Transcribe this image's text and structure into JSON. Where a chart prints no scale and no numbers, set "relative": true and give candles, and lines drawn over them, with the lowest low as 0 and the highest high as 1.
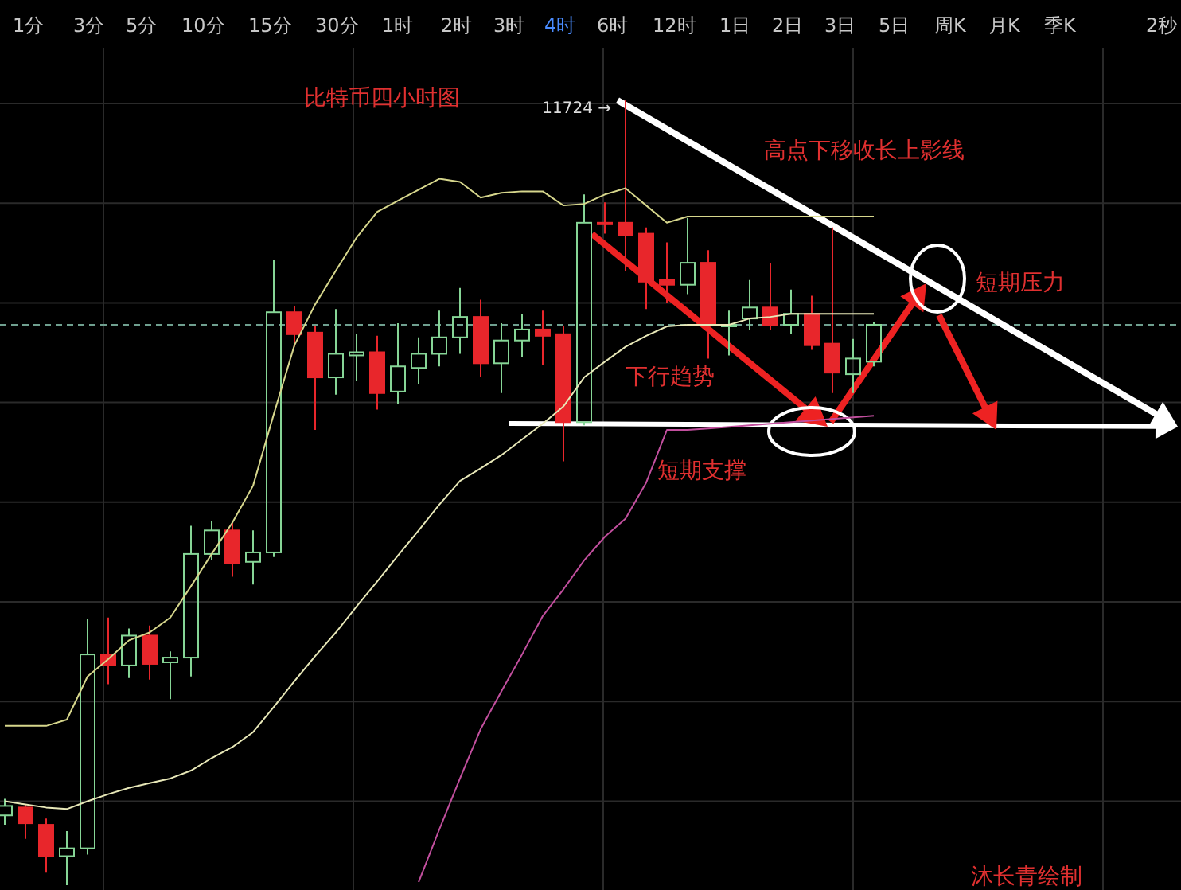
{
  "chart_data": {
    "type": "candlestick",
    "title": "比特币四小时图",
    "relative": true,
    "grid": true,
    "categories": [
      null,
      null,
      null,
      null,
      null,
      null,
      null,
      null,
      null,
      null,
      null,
      null,
      null,
      null,
      null,
      null,
      null,
      null,
      null,
      null,
      null,
      null,
      null,
      null,
      null,
      null,
      null,
      null,
      null,
      null,
      null,
      null,
      null,
      null,
      null,
      null,
      null,
      null,
      null,
      null,
      null,
      null,
      null
    ],
    "ohlc": [
      [
        0.089,
        0.11,
        0.077,
        0.101
      ],
      [
        0.099,
        0.103,
        0.059,
        0.079
      ],
      [
        0.077,
        0.085,
        0.016,
        0.037
      ],
      [
        0.037,
        0.069,
        0,
        0.047
      ],
      [
        0.047,
        0.339,
        0.039,
        0.294
      ],
      [
        0.294,
        0.341,
        0.256,
        0.28
      ],
      [
        0.28,
        0.327,
        0.264,
        0.318
      ],
      [
        0.318,
        0.331,
        0.262,
        0.282
      ],
      [
        0.284,
        0.298,
        0.237,
        0.29
      ],
      [
        0.29,
        0.458,
        0.266,
        0.422
      ],
      [
        0.422,
        0.464,
        0.414,
        0.452
      ],
      [
        0.452,
        0.464,
        0.393,
        0.41
      ],
      [
        0.412,
        0.452,
        0.383,
        0.424
      ],
      [
        0.424,
        0.797,
        0.418,
        0.73
      ],
      [
        0.73,
        0.738,
        0.686,
        0.702
      ],
      [
        0.704,
        0.712,
        0.58,
        0.647
      ],
      [
        0.647,
        0.734,
        0.625,
        0.677
      ],
      [
        0.675,
        0.702,
        0.643,
        0.679
      ],
      [
        0.679,
        0.7,
        0.606,
        0.627
      ],
      [
        0.629,
        0.716,
        0.613,
        0.661
      ],
      [
        0.659,
        0.698,
        0.639,
        0.677
      ],
      [
        0.677,
        0.732,
        0.661,
        0.698
      ],
      [
        0.698,
        0.761,
        0.677,
        0.724
      ],
      [
        0.724,
        0.746,
        0.647,
        0.665
      ],
      [
        0.665,
        0.716,
        0.627,
        0.694
      ],
      [
        0.694,
        0.728,
        0.673,
        0.708
      ],
      [
        0.708,
        0.732,
        0.663,
        0.7
      ],
      [
        0.702,
        0.712,
        0.54,
        0.59
      ],
      [
        0.59,
        0.88,
        0.586,
        0.844
      ],
      [
        0.844,
        0.87,
        0.83,
        0.842
      ],
      [
        0.844,
        1,
        0.783,
        0.828
      ],
      [
        0.83,
        0.838,
        0.734,
        0.769
      ],
      [
        0.771,
        0.819,
        0.742,
        0.765
      ],
      [
        0.765,
        0.85,
        0.753,
        0.793
      ],
      [
        0.793,
        0.809,
        0.671,
        0.716
      ],
      [
        0.712,
        0.732,
        0.675,
        0.714
      ],
      [
        0.722,
        0.771,
        0.708,
        0.736
      ],
      [
        0.736,
        0.793,
        0.708,
        0.714
      ],
      [
        0.714,
        0.759,
        0.702,
        0.728
      ],
      [
        0.728,
        0.751,
        0.682,
        0.688
      ],
      [
        0.69,
        0.838,
        0.627,
        0.653
      ],
      [
        0.651,
        0.696,
        0.627,
        0.671
      ],
      [
        0.667,
        0.718,
        0.661,
        0.714
      ]
    ],
    "series": [
      {
        "type": "line",
        "color": "#d6d68c",
        "values": [
          0.203,
          0.203,
          0.203,
          0.211,
          0.266,
          0.288,
          0.312,
          0.322,
          0.341,
          0.381,
          0.422,
          0.462,
          0.509,
          0.6,
          0.688,
          0.74,
          0.783,
          0.825,
          0.858,
          0.872,
          0.886,
          0.9,
          0.896,
          0.876,
          0.882,
          0.884,
          0.884,
          0.866,
          0.868,
          0.88,
          0.888,
          0.866,
          0.844,
          0.852,
          0.852,
          0.852,
          0.852,
          0.852,
          0.852,
          0.852,
          0.852,
          0.852,
          0.852
        ]
      },
      {
        "type": "line",
        "color": "#e8e8b8",
        "values": [
          0.107,
          0.103,
          0.099,
          0.097,
          0.107,
          0.116,
          0.124,
          0.13,
          0.136,
          0.146,
          0.162,
          0.176,
          0.195,
          0.227,
          0.26,
          0.292,
          0.322,
          0.355,
          0.387,
          0.42,
          0.452,
          0.485,
          0.515,
          0.531,
          0.548,
          0.568,
          0.588,
          0.61,
          0.647,
          0.667,
          0.686,
          0.7,
          0.712,
          0.714,
          0.714,
          0.714,
          0.722,
          0.724,
          0.728,
          0.728,
          0.728,
          0.728,
          0.728
        ]
      },
      {
        "type": "line",
        "color": "#c24f9e",
        "values": [
          null,
          null,
          null,
          null,
          null,
          null,
          null,
          null,
          null,
          null,
          null,
          null,
          null,
          null,
          null,
          null,
          null,
          null,
          null,
          null,
          0.004,
          0.071,
          0.136,
          0.199,
          0.247,
          0.294,
          0.343,
          0.377,
          0.414,
          0.444,
          0.467,
          0.513,
          0.58,
          0.58,
          0.582,
          0.584,
          0.586,
          0.588,
          0.59,
          0.592,
          0.594,
          0.596,
          0.598
        ]
      }
    ],
    "ref_lines": [
      {
        "axis": "y",
        "value": 0.714,
        "color": "#6f9f8f",
        "line_style": "dashed"
      }
    ],
    "annotations": [
      "11724 →",
      "高点下移收长上影线",
      "短期压力",
      "下行趋势",
      "短期支撑",
      "沐长青绘制",
      "1分",
      "3分",
      "5分",
      "10分",
      "15分",
      "30分",
      "1时",
      "2时",
      "3时",
      "4时",
      "6时",
      "12时",
      "1日",
      "2日",
      "3日",
      "5日",
      "周K",
      "月K",
      "季K",
      "2秒"
    ]
  }
}
